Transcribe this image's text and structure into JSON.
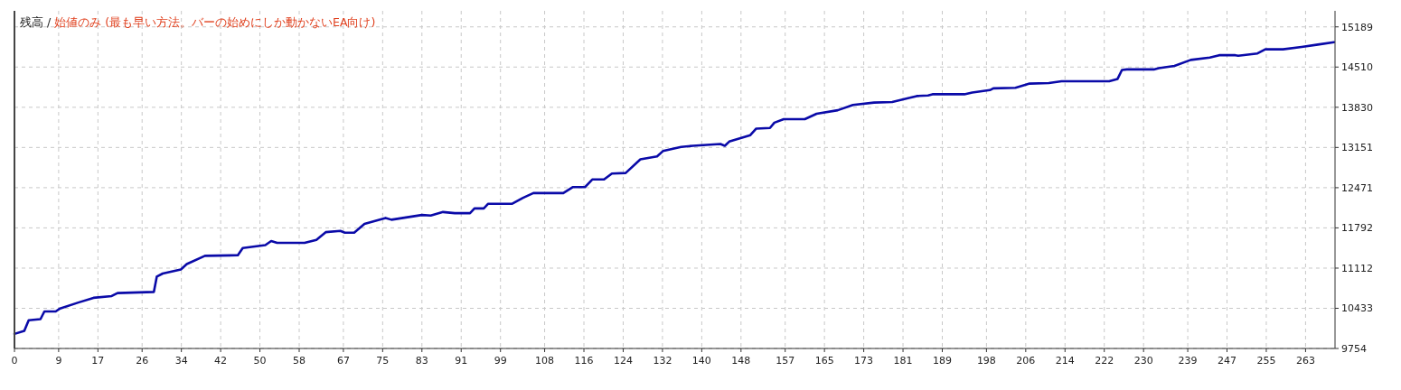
{
  "chart_data": {
    "type": "line",
    "title": "残高 /",
    "subtitle": "始値のみ (最も早い方法。バーの始めにしか動かないEA向け)",
    "xlim": [
      0,
      269
    ],
    "xticks": [
      0,
      9,
      17,
      26,
      34,
      42,
      50,
      58,
      67,
      75,
      83,
      91,
      99,
      108,
      116,
      124,
      132,
      140,
      148,
      157,
      165,
      173,
      181,
      189,
      198,
      206,
      214,
      222,
      230,
      239,
      247,
      255,
      263
    ],
    "ylim": [
      9754,
      15460
    ],
    "yticks": [
      9754,
      10433,
      11112,
      11792,
      12471,
      13151,
      13830,
      14510,
      15189
    ],
    "grid": true,
    "line_style": "solid",
    "series": [
      {
        "color": "#0a0aa8",
        "x": [
          0,
          2.0,
          2.9,
          5.3,
          6.1,
          8.4,
          9.3,
          13.0,
          16.1,
          19.8,
          21.0,
          28.4,
          29.0,
          30.2,
          33.9,
          35.1,
          38.8,
          45.5,
          46.5,
          51.1,
          52.3,
          53.5,
          59.1,
          61.5,
          63.4,
          66.4,
          67.3,
          69.2,
          71.3,
          75.6,
          76.8,
          83.0,
          84.8,
          87.3,
          89.7,
          92.8,
          93.7,
          95.6,
          96.5,
          101.4,
          103.6,
          105.7,
          111.8,
          113.7,
          116.2,
          117.7,
          120.1,
          121.7,
          124.5,
          127.5,
          130.9,
          132.1,
          135.8,
          138.2,
          143.8,
          144.7,
          145.6,
          149.9,
          151.1,
          153.9,
          154.8,
          156.7,
          161.0,
          163.4,
          167.7,
          170.8,
          175.1,
          178.8,
          182.4,
          183.8,
          186.1,
          187.0,
          193.5,
          195.1,
          198.7,
          199.4,
          203.9,
          206.8,
          210.7,
          213.3,
          223.0,
          224.7,
          225.6,
          226.6,
          232.1,
          233.1,
          236.3,
          239.6,
          243.5,
          245.4,
          248.7,
          249.3,
          253.2,
          254.8,
          258.4,
          262.2,
          265.5,
          268.8
        ],
        "values": [
          10000,
          10050,
          10230,
          10250,
          10380,
          10380,
          10430,
          10530,
          10610,
          10640,
          10690,
          10710,
          10970,
          11020,
          11090,
          11180,
          11320,
          11330,
          11450,
          11500,
          11570,
          11540,
          11540,
          11590,
          11720,
          11740,
          11710,
          11710,
          11860,
          11960,
          11930,
          12010,
          12000,
          12060,
          12040,
          12040,
          12120,
          12120,
          12200,
          12200,
          12300,
          12380,
          12380,
          12480,
          12480,
          12610,
          12610,
          12710,
          12720,
          12950,
          13000,
          13090,
          13160,
          13180,
          13210,
          13180,
          13250,
          13360,
          13470,
          13480,
          13570,
          13630,
          13630,
          13720,
          13780,
          13870,
          13910,
          13920,
          13990,
          14020,
          14030,
          14050,
          14050,
          14080,
          14120,
          14150,
          14160,
          14230,
          14240,
          14270,
          14270,
          14310,
          14460,
          14470,
          14470,
          14490,
          14530,
          14630,
          14670,
          14710,
          14710,
          14700,
          14740,
          14810,
          14810,
          14850,
          14890,
          14930
        ]
      }
    ]
  }
}
